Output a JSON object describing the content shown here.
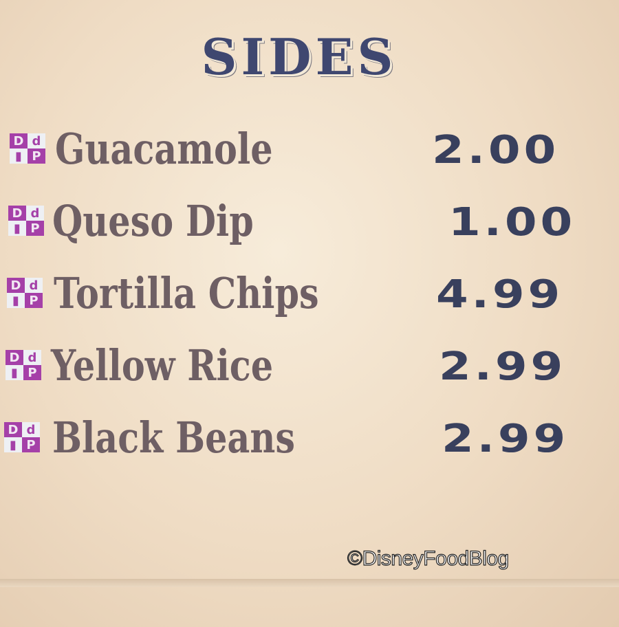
{
  "title": "SIDES",
  "items": [
    {
      "name": "Guacamole",
      "price": "2.00",
      "badge": "ddp-icon"
    },
    {
      "name": "Queso Dip",
      "price": "1.00",
      "badge": "ddp-icon"
    },
    {
      "name": "Tortilla Chips",
      "price": "4.99",
      "badge": "ddp-icon"
    },
    {
      "name": "Yellow Rice",
      "price": "2.99",
      "badge": "ddp-icon"
    },
    {
      "name": "Black Beans",
      "price": "2.99",
      "badge": "ddp-icon"
    }
  ],
  "watermark": "©DisneyFoodBlog",
  "colors": {
    "title": "#3f4770",
    "item": "#6e5f64",
    "price": "#39405d",
    "badge": "#a540a8"
  }
}
